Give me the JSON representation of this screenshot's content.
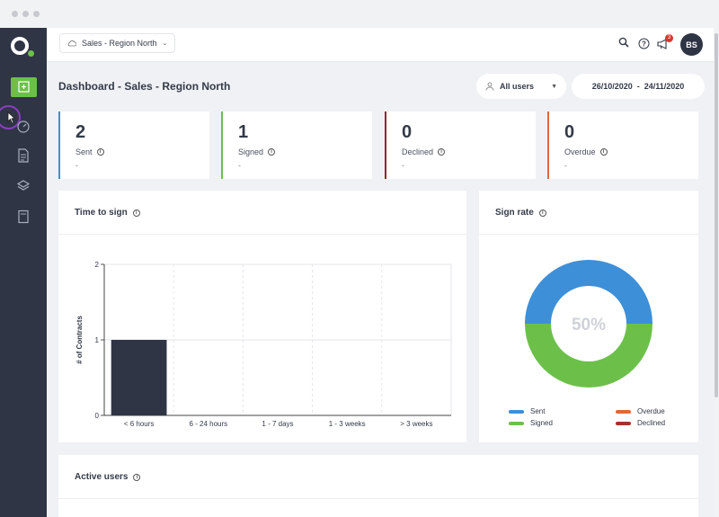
{
  "workspace": {
    "label": "Sales - Region North"
  },
  "topbar": {
    "notification_count": "3",
    "avatar_initials": "BS"
  },
  "page": {
    "title": "Dashboard - Sales - Region North"
  },
  "filters": {
    "users": "All users",
    "date_range": "26/10/2020  -  24/11/2020"
  },
  "stats": [
    {
      "value": "2",
      "label": "Sent",
      "sub": "-",
      "color": "#3d8fd8"
    },
    {
      "value": "1",
      "label": "Signed",
      "sub": "-",
      "color": "#6cc04a"
    },
    {
      "value": "0",
      "label": "Declined",
      "sub": "-",
      "color": "#8c2b22"
    },
    {
      "value": "0",
      "label": "Overdue",
      "sub": "-",
      "color": "#e0673c"
    }
  ],
  "time_to_sign": {
    "title": "Time to sign",
    "chart_data": {
      "type": "bar",
      "title": "Time to sign",
      "xlabel": "",
      "ylabel": "# of Contracts",
      "categories": [
        "< 6 hours",
        "6 - 24 hours",
        "1 - 7 days",
        "1 - 3 weeks",
        "> 3 weeks"
      ],
      "values": [
        1,
        0,
        0,
        0,
        0
      ],
      "ylim": [
        0,
        2
      ],
      "yticks": [
        "0",
        "1",
        "2"
      ],
      "grid": true,
      "bar_color": "#2f3545"
    }
  },
  "sign_rate": {
    "title": "Sign rate",
    "center_label": "50%",
    "chart_data": {
      "type": "pie",
      "labels": [
        "Sent",
        "Signed",
        "Overdue",
        "Declined"
      ],
      "values": [
        50,
        50,
        0,
        0
      ],
      "colors": [
        "#3d8fd8",
        "#6cc04a",
        "#e0673c",
        "#a5322a"
      ],
      "legend": "bottom"
    },
    "legend": [
      "Sent",
      "Signed",
      "Overdue",
      "Declined"
    ]
  },
  "active_users": {
    "title": "Active users"
  },
  "colors": {
    "accent_green": "#6cc04a",
    "sidebar": "#2f3545",
    "cursor_ring": "#8b3fc2"
  }
}
